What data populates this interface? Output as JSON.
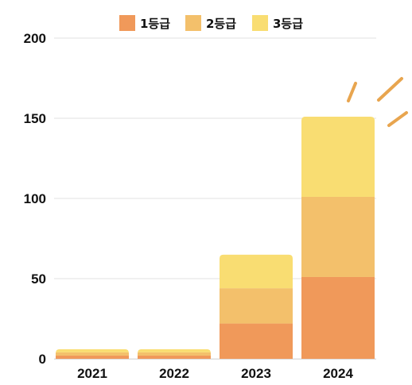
{
  "chart_data": {
    "type": "bar",
    "stacked": true,
    "categories": [
      "2021",
      "2022",
      "2023",
      "2024"
    ],
    "series": [
      {
        "name": "1등급",
        "color": "#F0995A",
        "values": [
          2,
          2,
          22,
          51
        ]
      },
      {
        "name": "2등급",
        "color": "#F3C06B",
        "values": [
          2,
          2,
          22,
          50
        ]
      },
      {
        "name": "3등급",
        "color": "#F9DD72",
        "values": [
          2,
          2,
          21,
          50
        ]
      }
    ],
    "title": "",
    "xlabel": "",
    "ylabel": "",
    "ylim": [
      0,
      200
    ],
    "yticks": [
      "0",
      "50",
      "100",
      "150",
      "200"
    ],
    "grid": true,
    "legend_position": "top-center",
    "decoration_color": "#E8A54F"
  }
}
